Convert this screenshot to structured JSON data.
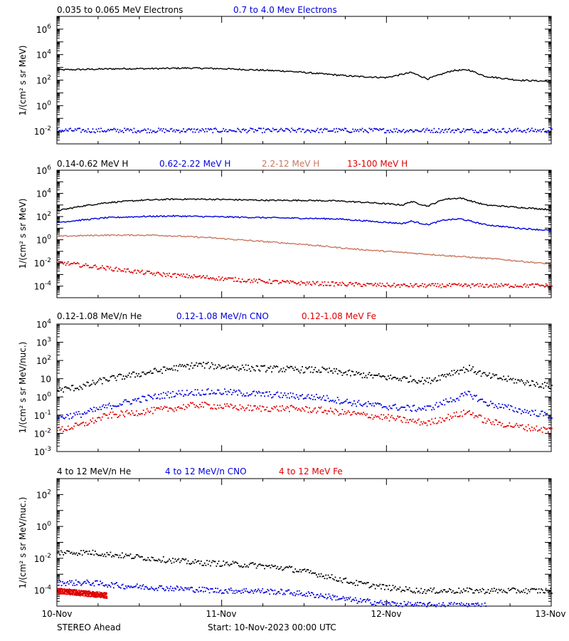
{
  "footer": {
    "spacecraft": "STEREO Ahead",
    "start": "Start: 10-Nov-2023 00:00 UTC"
  },
  "colors": {
    "black": "#000000",
    "blue": "#0000dd",
    "tan": "#c87860",
    "red": "#e00000"
  },
  "x_ticks": [
    "10-Nov",
    "11-Nov",
    "12-Nov",
    "13-Nov"
  ],
  "chart_data": [
    {
      "type": "scatter",
      "xlim": [
        0,
        3
      ],
      "ylim_exp": [
        -3,
        7
      ],
      "ylabel": "1/(cm² s sr MeV)",
      "yticks": [
        {
          "exp": 6,
          "label_base": "10",
          "label_exp": "6"
        },
        {
          "exp": 4,
          "label_base": "10",
          "label_exp": "4"
        },
        {
          "exp": 2,
          "label_base": "10",
          "label_exp": "2"
        },
        {
          "exp": 0,
          "label_base": "10",
          "label_exp": "0"
        },
        {
          "exp": -2,
          "label_base": "10",
          "label_exp": "-2"
        }
      ],
      "series": [
        {
          "name": "0.035 to 0.065 MeV Electrons",
          "color": "#000000",
          "style": "line",
          "x": [
            0,
            0.2,
            0.4,
            0.6,
            0.8,
            1.0,
            1.2,
            1.4,
            1.6,
            1.8,
            2.0,
            2.15,
            2.25,
            2.4,
            2.5,
            2.6,
            2.8,
            3.0
          ],
          "log_y": [
            2.8,
            2.85,
            2.9,
            2.9,
            2.95,
            2.9,
            2.8,
            2.7,
            2.5,
            2.3,
            2.2,
            2.6,
            2.1,
            2.75,
            2.8,
            2.3,
            2.0,
            1.9
          ]
        },
        {
          "name": "0.7 to 4.0 Mev Electrons",
          "color": "#0000dd",
          "style": "dots",
          "x": [
            0,
            3
          ],
          "log_y": [
            -1.9,
            -1.9
          ]
        }
      ]
    },
    {
      "type": "scatter",
      "xlim": [
        0,
        3
      ],
      "ylim_exp": [
        -5,
        6
      ],
      "ylabel": "1/(cm² s sr MeV)",
      "yticks": [
        {
          "exp": 6,
          "label_base": "10",
          "label_exp": "6"
        },
        {
          "exp": 4,
          "label_base": "10",
          "label_exp": "4"
        },
        {
          "exp": 2,
          "label_base": "10",
          "label_exp": "2"
        },
        {
          "exp": 0,
          "label_base": "10",
          "label_exp": "0"
        },
        {
          "exp": -2,
          "label_base": "10",
          "label_exp": "-2"
        },
        {
          "exp": -4,
          "label_base": "10",
          "label_exp": "-4"
        }
      ],
      "series": [
        {
          "name": "0.14-0.62 MeV H",
          "color": "#000000",
          "style": "line",
          "x": [
            0,
            0.15,
            0.3,
            0.5,
            0.7,
            0.9,
            1.1,
            1.3,
            1.5,
            1.7,
            1.9,
            2.1,
            2.15,
            2.25,
            2.35,
            2.45,
            2.6,
            2.8,
            3.0
          ],
          "log_y": [
            2.5,
            2.9,
            3.2,
            3.4,
            3.5,
            3.5,
            3.45,
            3.4,
            3.4,
            3.35,
            3.2,
            3.0,
            3.3,
            2.9,
            3.5,
            3.6,
            3.0,
            2.8,
            2.6
          ]
        },
        {
          "name": "0.62-2.22 MeV H",
          "color": "#0000dd",
          "style": "line",
          "x": [
            0,
            0.15,
            0.3,
            0.5,
            0.7,
            0.9,
            1.1,
            1.3,
            1.5,
            1.7,
            1.9,
            2.1,
            2.15,
            2.25,
            2.35,
            2.45,
            2.6,
            2.8,
            3.0
          ],
          "log_y": [
            1.5,
            1.7,
            1.9,
            2.0,
            2.05,
            2.0,
            1.95,
            1.9,
            1.85,
            1.8,
            1.6,
            1.4,
            1.6,
            1.3,
            1.7,
            1.8,
            1.3,
            1.0,
            0.8
          ]
        },
        {
          "name": "2.2-12 MeV H",
          "color": "#c87860",
          "style": "line",
          "x": [
            0,
            0.3,
            0.6,
            0.9,
            1.2,
            1.5,
            1.8,
            2.1,
            2.4,
            2.7,
            3.0
          ],
          "log_y": [
            0.3,
            0.4,
            0.4,
            0.2,
            -0.1,
            -0.4,
            -0.8,
            -1.1,
            -1.4,
            -1.7,
            -2.1
          ]
        },
        {
          "name": "13-100 MeV H",
          "color": "#e00000",
          "style": "dots",
          "x": [
            0,
            0.3,
            0.6,
            0.9,
            1.2,
            1.5,
            1.8,
            2.1,
            2.4,
            2.7,
            3.0
          ],
          "log_y": [
            -1.9,
            -2.4,
            -2.9,
            -3.2,
            -3.5,
            -3.7,
            -3.8,
            -3.9,
            -3.9,
            -3.9,
            -3.9
          ]
        }
      ]
    },
    {
      "type": "scatter",
      "xlim": [
        0,
        3
      ],
      "ylim_exp": [
        -3,
        4
      ],
      "ylabel": "1/(cm² s sr MeV/nuc.)",
      "yticks": [
        {
          "exp": 4,
          "label_base": "10",
          "label_exp": "4"
        },
        {
          "exp": 3,
          "label_base": "10",
          "label_exp": "3"
        },
        {
          "exp": 2,
          "label_base": "10",
          "label_exp": "2"
        },
        {
          "exp": 1,
          "label_base": "10",
          "label_exp": ""
        },
        {
          "exp": 0,
          "label_base": "10",
          "label_exp": "0"
        },
        {
          "exp": -1,
          "label_base": "10",
          "label_exp": "-1"
        },
        {
          "exp": -2,
          "label_base": "10",
          "label_exp": "-2"
        },
        {
          "exp": -3,
          "label_base": "10",
          "label_exp": "-3"
        }
      ],
      "ytick_text": [
        "10⁴",
        "10³",
        "10²",
        "10",
        "10⁰",
        "10⁻¹",
        "10⁻²",
        "10⁻³"
      ],
      "series": [
        {
          "name": "0.12-1.08 MeV/n He",
          "color": "#000000",
          "style": "dots",
          "x": [
            0,
            0.15,
            0.3,
            0.5,
            0.7,
            0.85,
            1.0,
            1.2,
            1.4,
            1.6,
            1.8,
            2.0,
            2.15,
            2.25,
            2.4,
            2.5,
            2.6,
            2.8,
            3.0
          ],
          "log_y": [
            0.4,
            0.6,
            1.0,
            1.3,
            1.6,
            1.8,
            1.7,
            1.6,
            1.55,
            1.5,
            1.3,
            1.1,
            1.0,
            0.9,
            1.4,
            1.6,
            1.2,
            0.9,
            0.6
          ]
        },
        {
          "name": "0.12-1.08 MeV/n CNO",
          "color": "#0000dd",
          "style": "dots",
          "x": [
            0,
            0.15,
            0.3,
            0.5,
            0.7,
            0.85,
            1.0,
            1.2,
            1.4,
            1.6,
            1.8,
            2.0,
            2.15,
            2.25,
            2.4,
            2.5,
            2.6,
            2.8,
            3.0
          ],
          "log_y": [
            -1.1,
            -0.9,
            -0.5,
            -0.1,
            0.2,
            0.3,
            0.3,
            0.2,
            0.1,
            0.0,
            -0.3,
            -0.5,
            -0.6,
            -0.6,
            -0.1,
            0.2,
            -0.3,
            -0.7,
            -1.0
          ]
        },
        {
          "name": "0.12-1.08 MeV Fe",
          "color": "#e00000",
          "style": "dots",
          "x": [
            0,
            0.15,
            0.3,
            0.5,
            0.7,
            0.85,
            1.0,
            1.2,
            1.4,
            1.6,
            1.8,
            2.0,
            2.15,
            2.25,
            2.4,
            2.5,
            2.6,
            2.8,
            3.0
          ],
          "log_y": [
            -1.8,
            -1.5,
            -1.0,
            -0.8,
            -0.6,
            -0.4,
            -0.5,
            -0.6,
            -0.6,
            -0.7,
            -0.9,
            -1.1,
            -1.3,
            -1.4,
            -1.0,
            -0.8,
            -1.3,
            -1.6,
            -1.8
          ]
        }
      ]
    },
    {
      "type": "scatter",
      "xlim": [
        0,
        3
      ],
      "ylim_exp": [
        -5,
        3
      ],
      "ylabel": "1/(cm² s sr MeV/nuc.)",
      "yticks": [
        {
          "exp": 2,
          "label_base": "10",
          "label_exp": "2"
        },
        {
          "exp": 0,
          "label_base": "10",
          "label_exp": "0"
        },
        {
          "exp": -2,
          "label_base": "10",
          "label_exp": "-2"
        },
        {
          "exp": -4,
          "label_base": "10",
          "label_exp": "-4"
        }
      ],
      "series": [
        {
          "name": "4 to 12 MeV/n He",
          "color": "#000000",
          "style": "dots",
          "x": [
            0,
            0.2,
            0.4,
            0.6,
            0.8,
            1.0,
            1.2,
            1.4,
            1.6,
            1.8,
            2.0,
            2.2,
            2.4,
            2.6,
            2.8,
            3.0
          ],
          "log_y": [
            -1.6,
            -1.6,
            -1.8,
            -2.0,
            -2.2,
            -2.3,
            -2.4,
            -2.6,
            -3.0,
            -3.5,
            -3.8,
            -4.0,
            -4.0,
            -4.0,
            -4.0,
            -4.0
          ]
        },
        {
          "name": "4 to 12 MeV/n CNO",
          "color": "#0000dd",
          "style": "dots",
          "x": [
            0,
            0.2,
            0.4,
            0.6,
            0.8,
            1.0,
            1.2,
            1.4,
            1.6,
            1.8,
            2.0,
            2.2,
            2.4,
            2.6
          ],
          "log_y": [
            -3.5,
            -3.5,
            -3.7,
            -3.8,
            -3.9,
            -4.0,
            -4.0,
            -4.1,
            -4.3,
            -4.6,
            -4.8,
            -4.9,
            -4.9,
            -4.9
          ]
        },
        {
          "name": "4 to 12 MeV Fe",
          "color": "#e00000",
          "style": "dots",
          "x": [
            0,
            0.1,
            0.2,
            0.3
          ],
          "log_y": [
            -4.0,
            -4.1,
            -4.2,
            -4.3
          ]
        }
      ]
    }
  ]
}
